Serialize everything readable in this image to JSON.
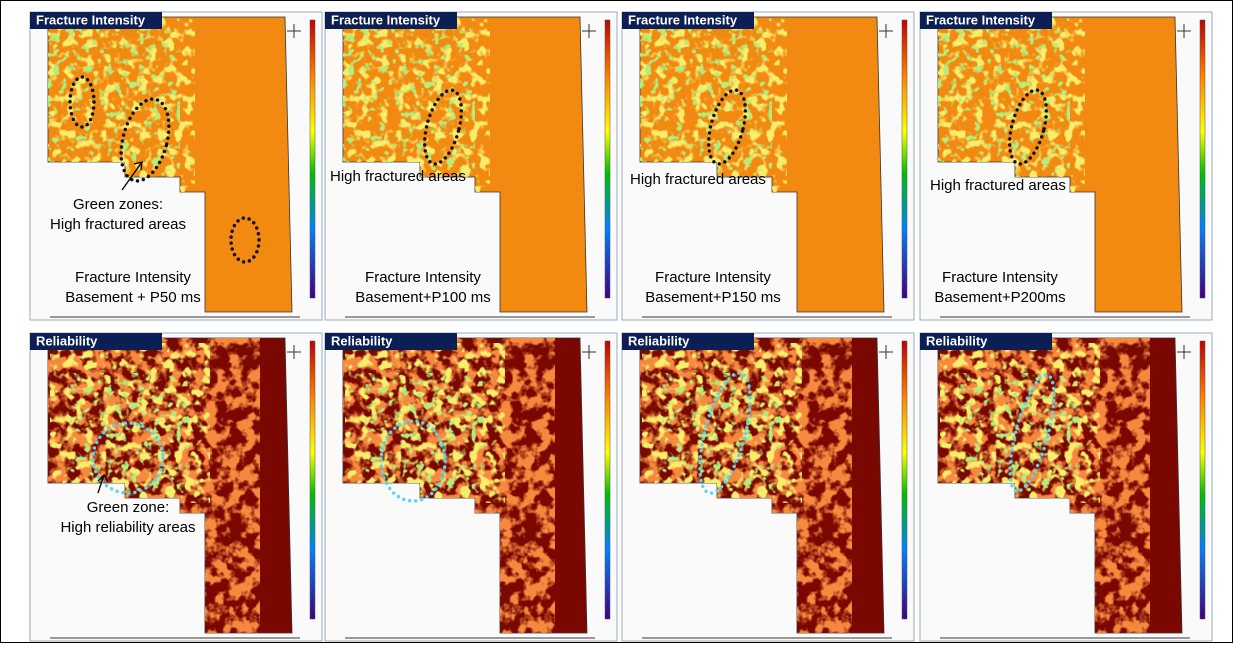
{
  "panels": [
    {
      "header": "Fracture Intensity",
      "note": [
        "Green zones:",
        "High fractured areas"
      ],
      "caption": [
        "Fracture Intensity",
        "Basement + P50 ms"
      ]
    },
    {
      "header": "Fracture Intensity",
      "note": [
        "High fractured areas"
      ],
      "caption": [
        "Fracture Intensity",
        "Basement+P100 ms"
      ]
    },
    {
      "header": "Fracture Intensity",
      "note": [
        "High fractured areas"
      ],
      "caption": [
        "Fracture Intensity",
        "Basement+P150 ms"
      ]
    },
    {
      "header": "Fracture Intensity",
      "note": [
        "High fractured areas"
      ],
      "caption": [
        "Fracture Intensity",
        "Basement+P200ms"
      ]
    },
    {
      "header": "Reliability",
      "note": [
        "Green zone:",
        "High reliability areas"
      ]
    },
    {
      "header": "Reliability"
    },
    {
      "header": "Reliability"
    },
    {
      "header": "Reliability"
    }
  ]
}
